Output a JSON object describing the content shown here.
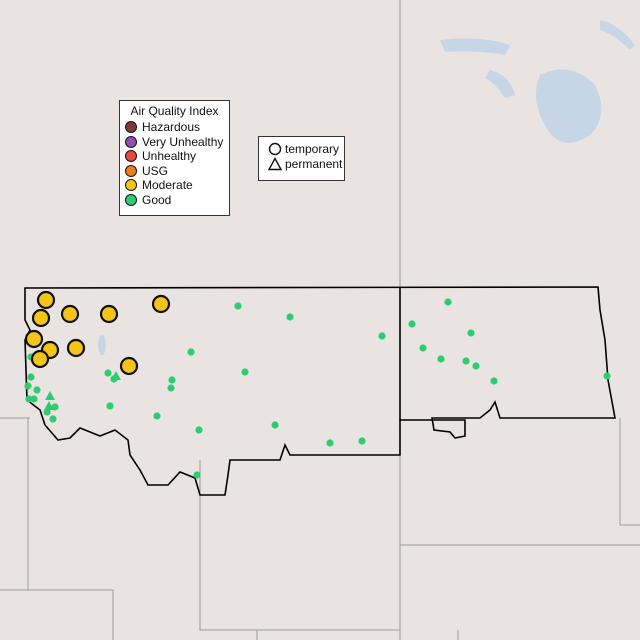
{
  "legend": {
    "title": "Air Quality Index",
    "categories": [
      {
        "label": "Hazardous",
        "color": "#7e3b35"
      },
      {
        "label": "Very Unhealthy",
        "color": "#8e4fb0"
      },
      {
        "label": "Unhealthy",
        "color": "#e8473f"
      },
      {
        "label": "USG",
        "color": "#ea7f1c"
      },
      {
        "label": "Moderate",
        "color": "#f4c518"
      },
      {
        "label": "Good",
        "color": "#2ecc71"
      }
    ]
  },
  "monitor_types": [
    {
      "label": "temporary",
      "icon": "circle-icon"
    },
    {
      "label": "permanent",
      "icon": "triangle-icon"
    }
  ],
  "colors": {
    "land": "#e9e4e1",
    "water": "#c6d6e6",
    "border": "#000000",
    "state_lines": "#9a9a9a"
  }
}
